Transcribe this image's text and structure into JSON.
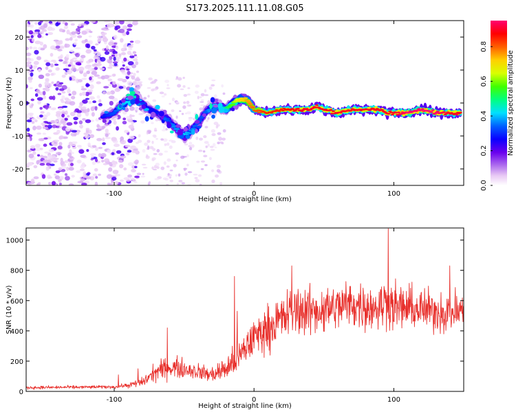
{
  "title": "S173.2025.111.11.08.G05",
  "colors": {
    "snr_line": "#e8302c",
    "axis": "#000000",
    "background": "#ffffff"
  },
  "chart_data": [
    {
      "type": "heatmap",
      "name": "spectrogram",
      "xlabel": "Height of straight line (km)",
      "ylabel": "Frequency (Hz)",
      "xlim": [
        -163,
        150
      ],
      "ylim": [
        -25,
        25
      ],
      "xticks": [
        -100,
        0,
        100
      ],
      "xtick_labels": [
        "-100",
        "0",
        "100"
      ],
      "yticks": [
        -20,
        -10,
        0,
        10,
        20
      ],
      "ytick_labels": [
        "-20",
        "-10",
        "0",
        "10",
        "20"
      ],
      "colorbar": {
        "label": "Normalized spectral amplitude",
        "range": [
          0,
          0.95
        ],
        "ticks": [
          0.0,
          0.2,
          0.4,
          0.6,
          0.8
        ],
        "tick_labels": [
          "0.0",
          "0.2",
          "0.4",
          "0.6",
          "0.8"
        ],
        "colormap": [
          "#ffffff",
          "#e8c8f4",
          "#b070ee",
          "#6a00ee",
          "#0a00ff",
          "#0060ff",
          "#00e0ff",
          "#00ff80",
          "#40ff00",
          "#d8ff00",
          "#ffd000",
          "#ff6000",
          "#ff0000",
          "#ff0070"
        ]
      },
      "ridge": {
        "description": "dominant frequency track",
        "height_km": [
          -108,
          -100,
          -95,
          -90,
          -85,
          -78,
          -70,
          -62,
          -55,
          -50,
          -46,
          -40,
          -35,
          -30,
          -25,
          -20,
          -15,
          -10,
          -5,
          0,
          10,
          20,
          30,
          40,
          45,
          50,
          60,
          70,
          80,
          90,
          95,
          100,
          110,
          120,
          130,
          140,
          148
        ],
        "frequency_hz": [
          -4,
          -3,
          -1,
          1,
          2,
          -1,
          -3,
          -5,
          -8,
          -10,
          -9,
          -6,
          -3,
          -1,
          -1,
          -2,
          0,
          1,
          1,
          -2,
          -3,
          -2,
          -2,
          -2,
          -1,
          -2,
          -3,
          -2,
          -2,
          -2,
          -3,
          -3,
          -3,
          -2,
          -3,
          -3,
          -3
        ],
        "amplitude": [
          0.3,
          0.35,
          0.4,
          0.45,
          0.5,
          0.3,
          0.3,
          0.35,
          0.4,
          0.45,
          0.4,
          0.35,
          0.35,
          0.4,
          0.45,
          0.5,
          0.6,
          0.7,
          0.75,
          0.8,
          0.85,
          0.85,
          0.9,
          0.9,
          0.9,
          0.9,
          0.9,
          0.9,
          0.9,
          0.9,
          0.9,
          0.9,
          0.95,
          0.95,
          0.95,
          0.9,
          0.9
        ]
      }
    },
    {
      "type": "line",
      "name": "snr",
      "xlabel": "Height of straight line (km)",
      "ylabel": "SNR (10 * v/v)",
      "xlim": [
        -163,
        150
      ],
      "ylim": [
        0,
        1080
      ],
      "xticks": [
        -100,
        0,
        100
      ],
      "xtick_labels": [
        "-100",
        "0",
        "100"
      ],
      "yticks": [
        0,
        200,
        400,
        600,
        800,
        1000
      ],
      "ytick_labels": [
        "0",
        "200",
        "400",
        "600",
        "800",
        "1000"
      ],
      "series": [
        {
          "name": "SNR",
          "envelope_x": [
            -163,
            -100,
            -90,
            -80,
            -70,
            -60,
            -50,
            -40,
            -30,
            -20,
            -10,
            -5,
            0,
            10,
            20,
            30,
            40,
            50,
            60,
            70,
            80,
            90,
            95,
            100,
            110,
            120,
            130,
            140,
            150
          ],
          "mean_y": [
            25,
            30,
            40,
            60,
            130,
            160,
            150,
            130,
            110,
            150,
            230,
            300,
            360,
            420,
            480,
            540,
            530,
            540,
            560,
            580,
            560,
            560,
            600,
            560,
            550,
            540,
            530,
            520,
            540
          ],
          "spread_y": [
            10,
            10,
            15,
            30,
            60,
            70,
            60,
            50,
            50,
            80,
            110,
            120,
            120,
            140,
            150,
            160,
            150,
            150,
            150,
            150,
            150,
            150,
            160,
            150,
            140,
            130,
            130,
            130,
            130
          ],
          "spikes": [
            {
              "x": -97,
              "y": 110
            },
            {
              "x": -83,
              "y": 150
            },
            {
              "x": -62,
              "y": 420
            },
            {
              "x": -14,
              "y": 760
            },
            {
              "x": -12,
              "y": 530
            },
            {
              "x": 27,
              "y": 830
            },
            {
              "x": 96,
              "y": 1075
            },
            {
              "x": 140,
              "y": 830
            }
          ]
        }
      ]
    }
  ]
}
